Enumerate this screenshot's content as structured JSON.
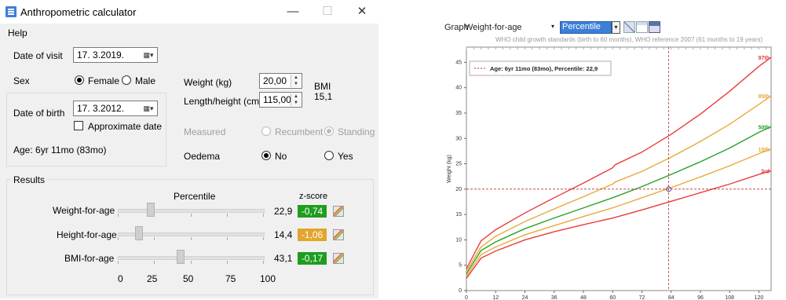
{
  "app": {
    "title": "Anthropometric calculator",
    "controls": {
      "minimize": "—",
      "maximize": "☐",
      "close": "✕"
    }
  },
  "menu": {
    "help": "Help"
  },
  "visit": {
    "label": "Date of visit",
    "value": "17.  3.2019."
  },
  "sex": {
    "label": "Sex",
    "female": "Female",
    "male": "Male",
    "selected": "Female"
  },
  "birth": {
    "label": "Date of birth",
    "value": "17.  3.2012.",
    "approximate": "Approximate date",
    "age": "Age: 6yr 11mo (83mo)"
  },
  "weight": {
    "label": "Weight (kg)",
    "value": "20,00"
  },
  "length": {
    "label": "Length/height (cm)",
    "value": "115,00"
  },
  "bmi": {
    "label": "BMI",
    "value": "15,1"
  },
  "measured": {
    "label": "Measured",
    "recumbent": "Recumbent",
    "standing": "Standing",
    "selected": "Standing"
  },
  "oedema": {
    "label": "Oedema",
    "no": "No",
    "yes": "Yes",
    "selected": "No"
  },
  "results": {
    "title": "Results",
    "percentile_header": "Percentile",
    "zscore_header": "z-score",
    "scale": [
      "0",
      "25",
      "50",
      "75",
      "100"
    ],
    "rows": [
      {
        "label": "Weight-for-age",
        "percentile": "22,9",
        "zscore": "-0,74",
        "color": "#1f9d1f",
        "pct": 22.9
      },
      {
        "label": "Height-for-age",
        "percentile": "14,4",
        "zscore": "-1,06",
        "color": "#e3a52b",
        "pct": 14.4
      },
      {
        "label": "BMI-for-age",
        "percentile": "43,1",
        "zscore": "-0,17",
        "color": "#1f9d1f",
        "pct": 43.1
      }
    ]
  },
  "graph": {
    "label": "Graph",
    "type_value": "Weight-for-age",
    "mode_value": "Percentile",
    "subtitle": "WHO child growth standards (birth to 60 months), WHO reference 2007 (61 months to 19 years)",
    "legend_text": "Age: 6yr 11mo (83mo), Percentile: 22,9",
    "colors": {
      "p97": "#e83c3c",
      "p85": "#e8a93c",
      "p50": "#2aa02a",
      "p15": "#e8a93c",
      "p3": "#e83c3c",
      "marker": "#c03030"
    }
  },
  "chart_data": {
    "type": "line",
    "xlabel": "",
    "ylabel": "Weight (kg)",
    "xlim": [
      0,
      125
    ],
    "ylim": [
      0,
      48
    ],
    "xticks": [
      0,
      12,
      24,
      36,
      48,
      60,
      72,
      84,
      96,
      108,
      120
    ],
    "yticks": [
      0,
      5,
      10,
      15,
      20,
      25,
      30,
      35,
      40,
      45
    ],
    "marker": {
      "x": 83,
      "y": 20
    },
    "series": [
      {
        "name": "97th",
        "x": [
          0,
          6,
          12,
          24,
          36,
          48,
          60,
          61,
          72,
          84,
          96,
          108,
          120,
          125
        ],
        "y": [
          4.3,
          9.8,
          12.0,
          15.3,
          18.3,
          21.2,
          24.2,
          24.8,
          27.3,
          30.8,
          34.8,
          39.3,
          44.2,
          46.0
        ]
      },
      {
        "name": "85th",
        "x": [
          0,
          6,
          12,
          24,
          36,
          48,
          60,
          61,
          72,
          84,
          96,
          108,
          120,
          125
        ],
        "y": [
          3.8,
          8.6,
          10.7,
          13.6,
          16.1,
          18.5,
          21.0,
          21.4,
          23.5,
          26.3,
          29.4,
          32.8,
          36.7,
          38.4
        ]
      },
      {
        "name": "50th",
        "x": [
          0,
          6,
          12,
          24,
          36,
          48,
          60,
          72,
          84,
          96,
          108,
          120,
          125
        ],
        "y": [
          3.3,
          7.9,
          9.6,
          12.2,
          14.3,
          16.3,
          18.3,
          20.5,
          22.9,
          25.4,
          28.1,
          31.2,
          32.3
        ]
      },
      {
        "name": "15th",
        "x": [
          0,
          6,
          12,
          24,
          36,
          48,
          60,
          72,
          84,
          96,
          108,
          120,
          125
        ],
        "y": [
          2.8,
          7.1,
          8.6,
          11.0,
          12.8,
          14.6,
          16.3,
          18.3,
          20.3,
          22.4,
          24.6,
          27.0,
          27.9
        ]
      },
      {
        "name": "3rd",
        "x": [
          0,
          6,
          12,
          24,
          36,
          48,
          60,
          72,
          84,
          96,
          108,
          120,
          125
        ],
        "y": [
          2.4,
          6.4,
          7.8,
          10.0,
          11.6,
          13.0,
          14.3,
          15.9,
          17.6,
          19.3,
          21.0,
          22.9,
          23.6
        ]
      }
    ]
  }
}
